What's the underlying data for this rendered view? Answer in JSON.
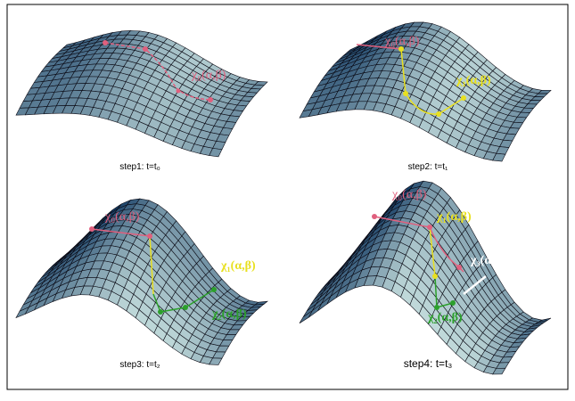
{
  "panels": [
    {
      "caption": "step1: t=t₀",
      "labels": [
        "χ₀(α,β)"
      ]
    },
    {
      "caption": "step2: t=t₁",
      "labels": [
        "χ₀(α,β)",
        "χ₁(α,β)"
      ]
    },
    {
      "caption": "step3: t=t₂",
      "labels": [
        "χ₀(α,β)",
        "χ₁(α,β)",
        "χ₂(α,β)"
      ]
    },
    {
      "caption": "step4: t=t₃",
      "labels": [
        "χ₀(α,β)",
        "χ₁(α,β)",
        "χ₂(α,β)",
        "χ₃(α,β)"
      ]
    }
  ]
}
